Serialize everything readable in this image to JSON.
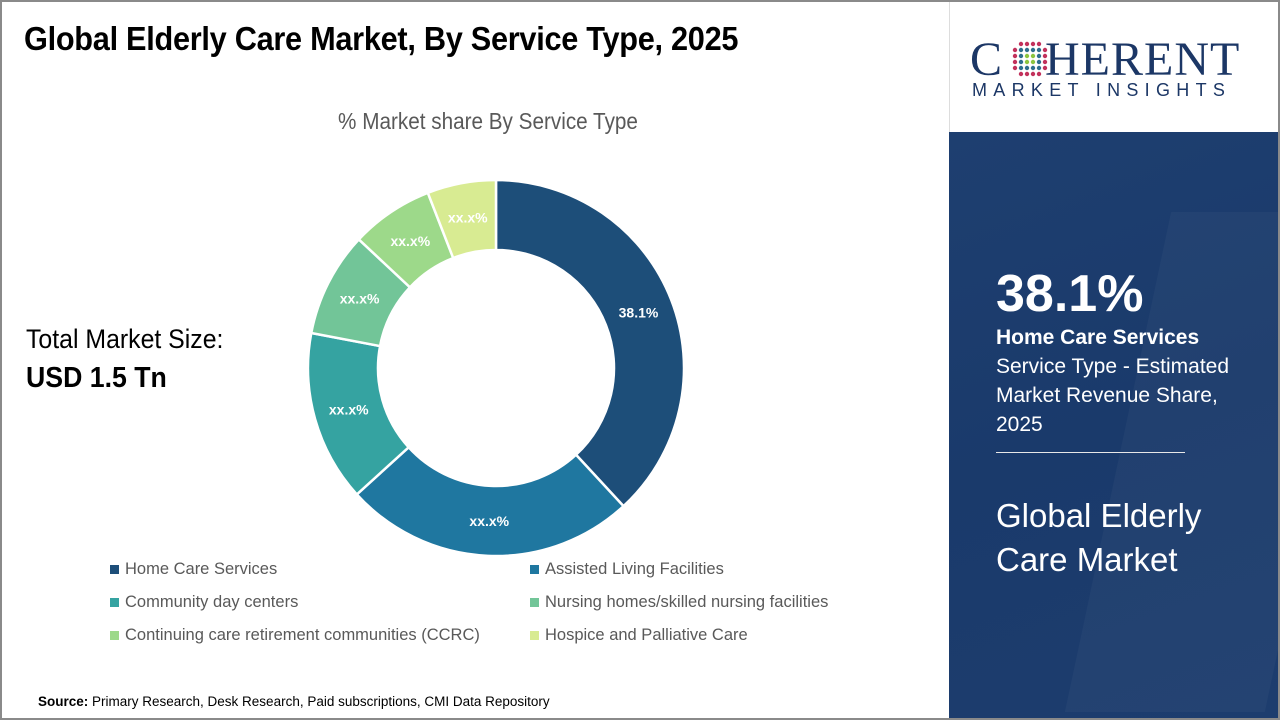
{
  "header": {
    "title": "Global Elderly Care Market, By Service Type, 2025"
  },
  "total_market": {
    "label": "Total Market Size:",
    "value": "USD 1.5 Tn"
  },
  "source": {
    "prefix": "Source:",
    "text": " Primary Research, Desk Research, Paid subscriptions, CMI Data Repository"
  },
  "logo": {
    "word_prefix": "C",
    "word_suffix": "HERENT",
    "subtitle": "MARKET INSIGHTS",
    "icon": "globe-dots-icon"
  },
  "highlight_panel": {
    "stat_value": "38.1%",
    "stat_label": "Home Care Services",
    "stat_description": "Service Type - Estimated Market Revenue Share, 2025",
    "market_title": "Global Elderly Care Market"
  },
  "colors": {
    "panel_background": "#1b3a6b",
    "brand_navy": "#1c3766"
  },
  "chart_data": {
    "type": "pie",
    "variant": "donut",
    "title": "% Market share By Service Type",
    "categories": [
      "Home Care Services",
      "Assisted Living Facilities",
      "Community day centers",
      "Nursing homes/skilled nursing facilities",
      "Continuing care retirement communities (CCRC)",
      "Hospice and Palliative Care"
    ],
    "values": [
      38.1,
      25.1,
      14.7,
      9.0,
      7.1,
      5.9
    ],
    "value_note": "Only 38.1% is printed; other values estimated from slice angles",
    "data_labels": [
      "38.1%",
      "xx.x%",
      "xx.x%",
      "xx.x%",
      "xx.x%",
      "xx.x%"
    ],
    "colors": [
      "#1d4e79",
      "#1f77a0",
      "#35a3a1",
      "#72c598",
      "#9dd98a",
      "#d8eb92"
    ],
    "start_angle": "12 o'clock, clockwise",
    "legend": {
      "placement": "bottom",
      "columns": 2
    }
  }
}
